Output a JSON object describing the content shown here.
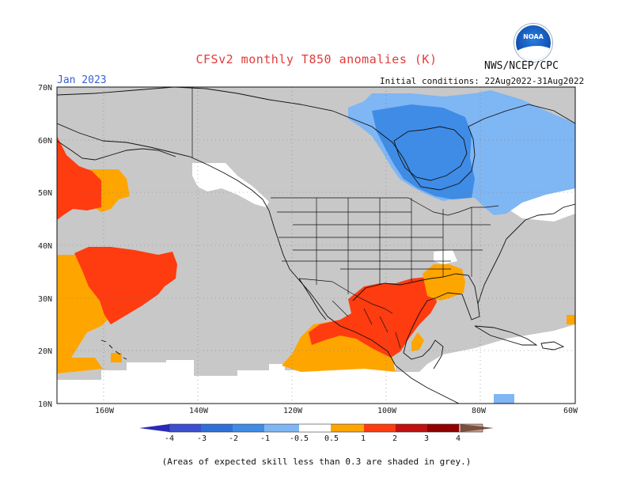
{
  "header": {
    "title": "CFSv2 monthly T850 anomalies (K)",
    "org": "NWS/NCEP/CPC",
    "logo_text": "NOAA",
    "month": "Jan 2023",
    "initial_conditions": "Initial conditions: 22Aug2022-31Aug2022"
  },
  "map": {
    "lat_labels": [
      "70N",
      "60N",
      "50N",
      "40N",
      "30N",
      "20N",
      "10N"
    ],
    "lon_labels": [
      "160W",
      "140W",
      "120W",
      "100W",
      "80W",
      "60W"
    ],
    "lat_range": [
      10,
      70
    ],
    "lon_range": [
      -170,
      -60
    ],
    "grey_meaning": "skill < 0.3",
    "colors": {
      "grey": "#c8c8c8",
      "land_line": "#111111",
      "ocean": "#ffffff"
    },
    "regions": [
      {
        "name": "north-pacific-warm",
        "category": "1 to 2"
      },
      {
        "name": "subtropical-pacific-warm",
        "category": "1 to 2"
      },
      {
        "name": "pacific-coast-warm",
        "category": "0.5 to 1"
      },
      {
        "name": "mexico-texas-warm",
        "category": "1 to 2"
      },
      {
        "name": "southeast-us-warm",
        "category": "0.5 to 1"
      },
      {
        "name": "canada-cold",
        "category": "-1 to -0.5"
      },
      {
        "name": "hudson-bay-cold",
        "category": "-2 to -1"
      }
    ]
  },
  "colorbar": {
    "labels": [
      "-4",
      "-3",
      "-2",
      "-1",
      "-0.5",
      "0.5",
      "1",
      "2",
      "3",
      "4"
    ],
    "colors": [
      "#2a2ab8",
      "#3c4fd0",
      "#2f6fd8",
      "#3f8ce6",
      "#7fb6f4",
      "#ffffff",
      "#ffa500",
      "#ff3b10",
      "#c01010",
      "#900000",
      "#c8a090",
      "#7a5040"
    ]
  },
  "footnote": "(Areas of expected skill less than 0.3 are shaded in grey.)"
}
